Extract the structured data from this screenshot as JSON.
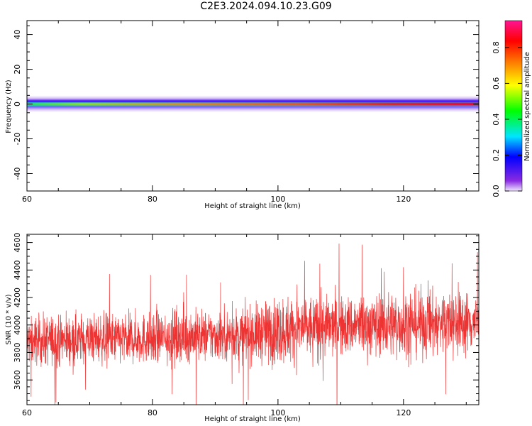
{
  "title": "C2E3.2024.094.10.23.G09",
  "chart_data": [
    {
      "type": "heatmap",
      "xlabel": "Height of straight line (km)",
      "ylabel": "Frequency (Hz)",
      "xlim": [
        60,
        132
      ],
      "ylim": [
        -50,
        48
      ],
      "xticks": [
        60,
        80,
        100,
        120
      ],
      "yticks": [
        -40,
        -20,
        0,
        20,
        40
      ],
      "colorbar": {
        "label": "Normalized spectral amplitude",
        "range": [
          0,
          0.95
        ],
        "ticks": [
          0.0,
          0.2,
          0.4,
          0.6,
          0.8
        ],
        "tick_labels": [
          "0.0",
          "0.2",
          "0.4",
          "0.6",
          "0.8"
        ],
        "colormap": [
          "#f0e6ff",
          "#8a2be2",
          "#0000ff",
          "#00e5ff",
          "#00ff00",
          "#ffff00",
          "#ff8000",
          "#ff0000",
          "#ff1493"
        ]
      },
      "band": {
        "center_freq": 0,
        "core_halfwidth_hz": 2,
        "halo_halfwidth_hz": 5
      },
      "grid": false
    },
    {
      "type": "line",
      "xlabel": "Height of straight line (km)",
      "ylabel": "SNR (10 * v/v)",
      "xlim": [
        60,
        132
      ],
      "ylim": [
        3420,
        4660
      ],
      "xticks": [
        60,
        80,
        100,
        120
      ],
      "yticks": [
        3600,
        3800,
        4000,
        4200,
        4400,
        4600
      ],
      "series": [
        {
          "color": "#ee3333",
          "x": [
            60,
            65,
            70,
            75,
            80,
            85,
            90,
            95,
            100,
            105,
            110,
            115,
            120,
            125,
            132
          ],
          "y": [
            3880,
            3890,
            3900,
            3900,
            3900,
            3920,
            3920,
            3930,
            3960,
            3980,
            3990,
            4000,
            4010,
            4010,
            4020
          ],
          "noise_amplitude": [
            150,
            150,
            150,
            150,
            150,
            160,
            150,
            160,
            210,
            190,
            180,
            190,
            200,
            200,
            180
          ]
        }
      ],
      "grid": false
    }
  ]
}
